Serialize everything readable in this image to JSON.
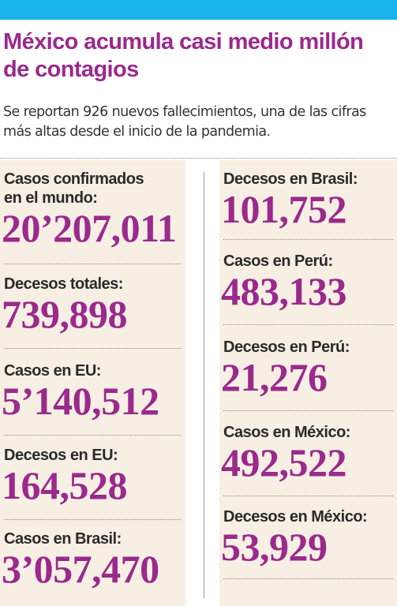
{
  "header": {
    "title": "México acumula casi medio millón de contagios",
    "subtitle": "Se reportan 926 nuevos fallecimientos, una de las cifras más altas desde el inicio de la pandemia."
  },
  "colors": {
    "accent_bar": "#18b4ea",
    "title": "#9a2a8c",
    "value": "#9a2a8c",
    "panel_bg": "#f7efe3"
  },
  "left_stats": [
    {
      "label": "Casos confirmados en el mundo:",
      "value": "20’207,011"
    },
    {
      "label": "Decesos totales:",
      "value": "739,898"
    },
    {
      "label": "Casos en EU:",
      "value": "5’140,512"
    },
    {
      "label": "Decesos en EU:",
      "value": "164,528"
    },
    {
      "label": "Casos en Brasil:",
      "value": "3’057,470"
    }
  ],
  "right_stats": [
    {
      "label": "Decesos en Brasil:",
      "value": "101,752"
    },
    {
      "label": "Casos en Perú:",
      "value": "483,133"
    },
    {
      "label": "Decesos en Perú:",
      "value": "21,276"
    },
    {
      "label": "Casos en México:",
      "value": "492,522"
    },
    {
      "label": "Decesos en México:",
      "value": "53,929"
    }
  ]
}
